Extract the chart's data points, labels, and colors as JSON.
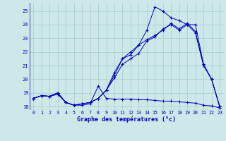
{
  "xlabel": "Graphe des températures (°c)",
  "xlim_min": -0.5,
  "xlim_max": 23.5,
  "ylim_min": 17.75,
  "ylim_max": 25.6,
  "yticks": [
    18,
    19,
    20,
    21,
    22,
    23,
    24,
    25
  ],
  "xticks": [
    0,
    1,
    2,
    3,
    4,
    5,
    6,
    7,
    8,
    9,
    10,
    11,
    12,
    13,
    14,
    15,
    16,
    17,
    18,
    19,
    20,
    21,
    22,
    23
  ],
  "bg_color": "#cce8e8",
  "line_color": "#0000bb",
  "grid_color": "#aacccc",
  "s1_x": [
    0,
    1,
    2,
    3,
    4,
    5,
    6,
    7,
    8,
    9,
    10,
    11,
    12,
    13,
    14,
    15,
    16,
    17,
    18,
    19,
    20,
    21,
    22,
    23
  ],
  "s1_y": [
    18.6,
    18.8,
    18.75,
    18.9,
    18.3,
    18.1,
    18.1,
    18.2,
    19.5,
    18.6,
    18.55,
    18.55,
    18.55,
    18.5,
    18.5,
    18.45,
    18.4,
    18.4,
    18.35,
    18.3,
    18.25,
    18.1,
    18.05,
    17.9
  ],
  "s2_x": [
    0,
    1,
    2,
    3,
    4,
    5,
    6,
    7,
    8,
    9,
    10,
    11,
    12,
    13,
    14,
    15,
    16,
    17,
    18,
    19,
    20,
    21,
    22,
    23
  ],
  "s2_y": [
    18.6,
    18.8,
    18.75,
    19.0,
    18.3,
    18.1,
    18.2,
    18.3,
    18.6,
    19.2,
    20.1,
    21.1,
    21.5,
    21.9,
    22.8,
    23.1,
    23.7,
    24.0,
    23.6,
    24.0,
    23.4,
    21.0,
    20.0,
    18.0
  ],
  "s3_x": [
    0,
    1,
    2,
    3,
    4,
    5,
    6,
    7,
    8,
    9,
    10,
    11,
    12,
    13,
    14,
    15,
    16,
    17,
    18,
    19,
    20,
    21,
    22,
    23
  ],
  "s3_y": [
    18.6,
    18.8,
    18.75,
    19.0,
    18.3,
    18.1,
    18.2,
    18.3,
    18.6,
    19.2,
    20.3,
    21.5,
    21.8,
    22.5,
    23.6,
    25.3,
    25.0,
    24.5,
    24.3,
    24.0,
    24.0,
    21.1,
    20.0,
    18.0
  ],
  "s4_x": [
    0,
    1,
    2,
    3,
    4,
    5,
    6,
    7,
    8,
    9,
    10,
    11,
    12,
    13,
    14,
    15,
    16,
    17,
    18,
    19,
    20,
    21,
    22,
    23
  ],
  "s4_y": [
    18.6,
    18.8,
    18.75,
    19.0,
    18.3,
    18.1,
    18.2,
    18.3,
    18.6,
    19.2,
    20.5,
    21.5,
    22.0,
    22.5,
    22.9,
    23.2,
    23.6,
    24.1,
    23.7,
    24.1,
    23.5,
    21.1,
    20.0,
    18.0
  ]
}
